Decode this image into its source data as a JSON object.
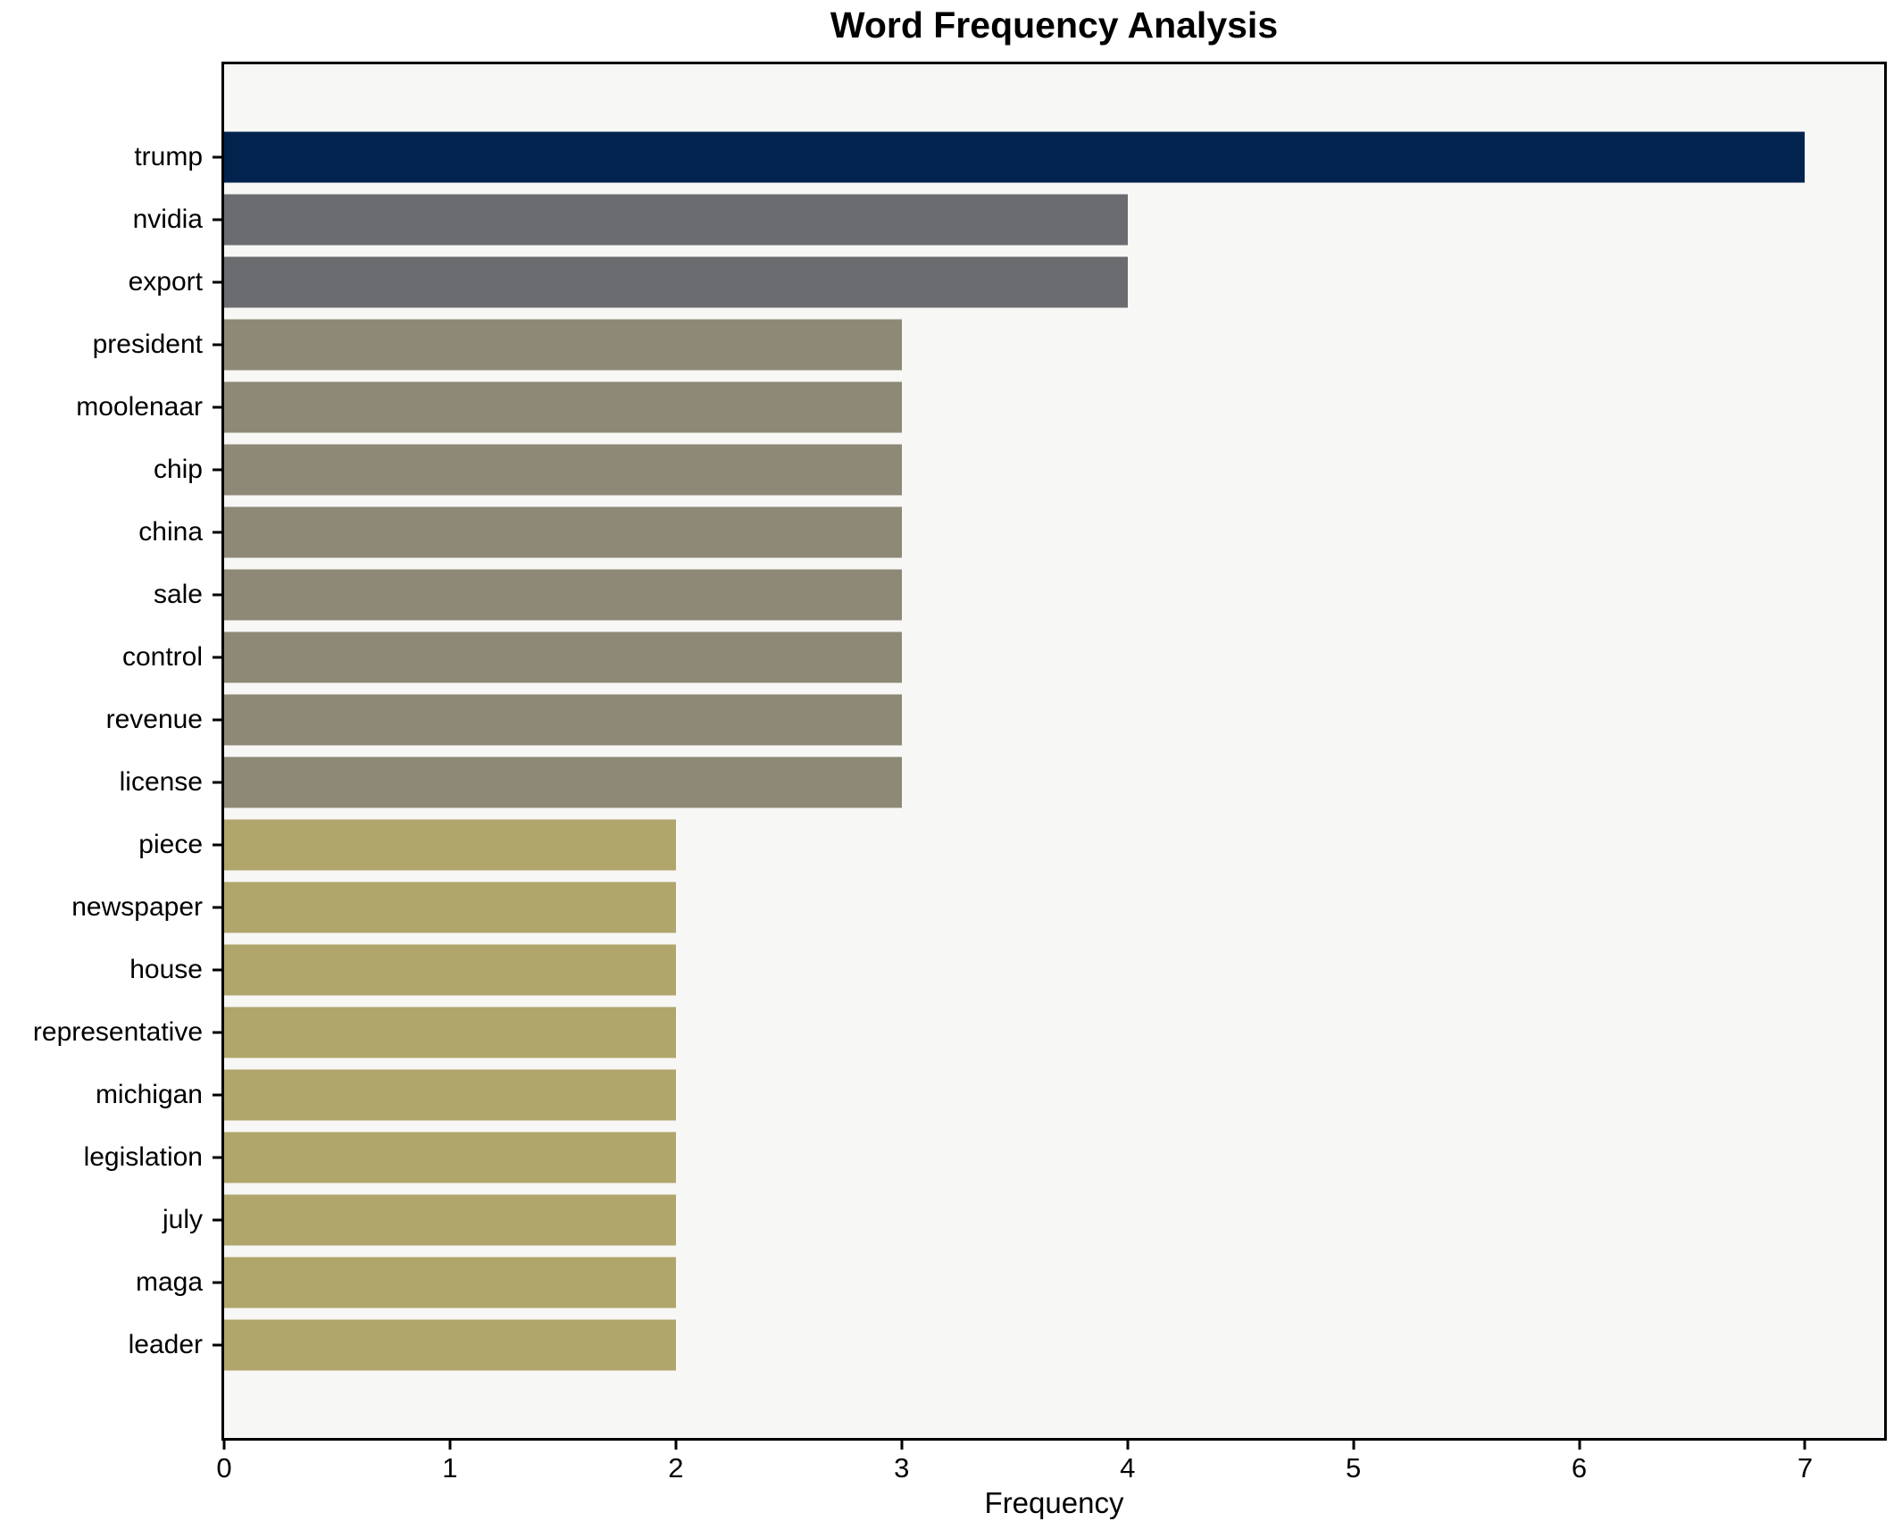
{
  "page": {
    "background": "#ffffff"
  },
  "chart_data": {
    "type": "bar",
    "orientation": "horizontal",
    "title": "Word Frequency Analysis",
    "xlabel": "Frequency",
    "ylabel": "",
    "categories": [
      "trump",
      "nvidia",
      "export",
      "president",
      "moolenaar",
      "chip",
      "china",
      "sale",
      "control",
      "revenue",
      "license",
      "piece",
      "newspaper",
      "house",
      "representative",
      "michigan",
      "legislation",
      "july",
      "maga",
      "leader"
    ],
    "values": [
      7,
      4,
      4,
      3,
      3,
      3,
      3,
      3,
      3,
      3,
      3,
      2,
      2,
      2,
      2,
      2,
      2,
      2,
      2,
      2
    ],
    "bar_colors": [
      "#02234d",
      "#6b6c70",
      "#6b6c70",
      "#8e8877",
      "#8e8877",
      "#8e8877",
      "#8e8877",
      "#8e8877",
      "#8e8877",
      "#8e8877",
      "#8e8877",
      "#b0a56b",
      "#b0a56b",
      "#b0a56b",
      "#b0a56b",
      "#b0a56b",
      "#b0a56b",
      "#b0a56b",
      "#b0a56b",
      "#b0a56b"
    ],
    "xlim": [
      0,
      7.35
    ],
    "x_ticks": [
      0,
      1,
      2,
      3,
      4,
      5,
      6,
      7
    ],
    "grid": false,
    "legend_position": "none",
    "plot_background": "#f7f7f5",
    "axis_color": "#000000"
  }
}
